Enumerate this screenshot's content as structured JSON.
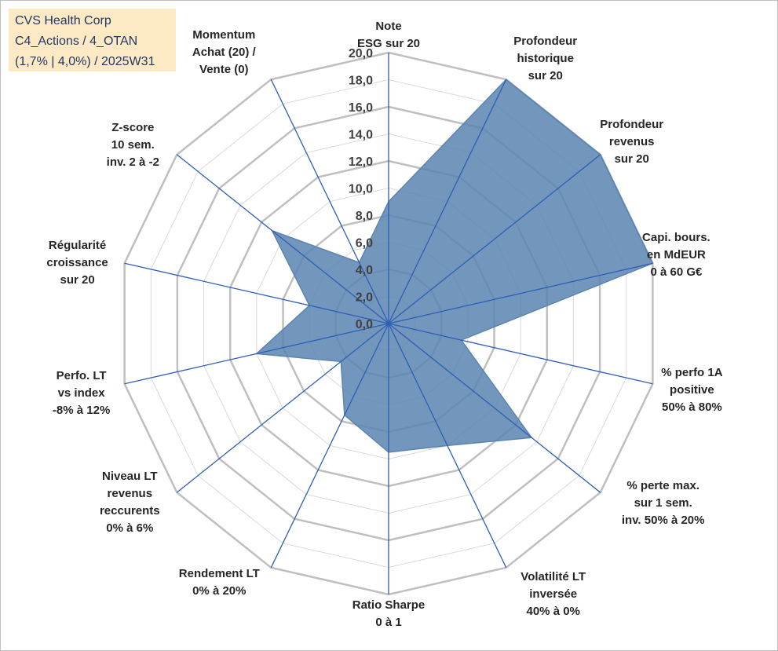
{
  "title_box": {
    "line1": "CVS Health Corp",
    "line2": "C4_Actions / 4_OTAN",
    "line3": "(1,7% | 4,0%) / 2025W31"
  },
  "chart_data": {
    "type": "radar",
    "rlim": [
      0,
      20
    ],
    "r_ticks": [
      "0,0",
      "2,0",
      "4,0",
      "6,0",
      "8,0",
      "10,0",
      "12,0",
      "14,0",
      "16,0",
      "18,0",
      "20,0"
    ],
    "grid": true,
    "fill_color": "#5b84b1",
    "axis_color": "#2f5fb3",
    "grid_color": "#c0c0c0",
    "axes": [
      {
        "label": [
          "Note",
          "ESG sur 20"
        ],
        "value": 9.0
      },
      {
        "label": [
          "Profondeur",
          "historique",
          "sur 20"
        ],
        "value": 20.0
      },
      {
        "label": [
          "Profondeur",
          "revenus",
          "sur 20"
        ],
        "value": 20.0
      },
      {
        "label": [
          "Capi. bours.",
          "en MdEUR",
          "0 à 60 G€"
        ],
        "value": 20.0
      },
      {
        "label": [
          "% perfo 1A",
          "positive",
          "50% à 80%"
        ],
        "value": 5.5
      },
      {
        "label": [
          "% perte max.",
          "sur 1 sem.",
          "inv. 50% à 20%"
        ],
        "value": 13.5
      },
      {
        "label": [
          "Volatilité LT",
          "inversée",
          "40% à 0%"
        ],
        "value": 10.0
      },
      {
        "label": [
          "Ratio Sharpe",
          "0 à 1"
        ],
        "value": 9.5
      },
      {
        "label": [
          "Rendement LT",
          "0% à 20%"
        ],
        "value": 7.5
      },
      {
        "label": [
          "Niveau LT",
          "revenus",
          "reccurents",
          "0% à 6%"
        ],
        "value": 4.5
      },
      {
        "label": [
          "Perfo. LT",
          "vs index",
          "-8% à 12%"
        ],
        "value": 10.0
      },
      {
        "label": [
          "Régularité",
          "croissance",
          "sur 20"
        ],
        "value": 6.0
      },
      {
        "label": [
          "Z-score",
          "10 sem.",
          "inv. 2 à -2"
        ],
        "value": 11.0
      },
      {
        "label": [
          "Momentum",
          "Achat (20) /",
          "Vente (0)"
        ],
        "value": 5.0
      }
    ]
  }
}
